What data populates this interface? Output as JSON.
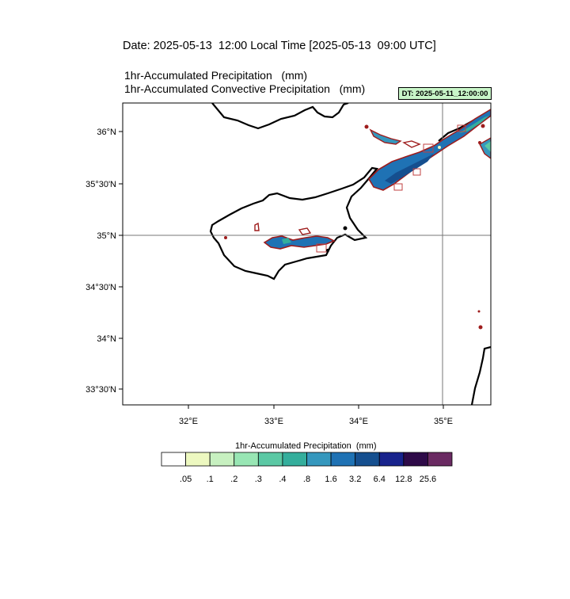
{
  "header": {
    "date_line": "Date: 2025-05-13  12:00 Local Time [2025-05-13  09:00 UTC]",
    "title_1": "1hr-Accumulated Precipitation   (mm)",
    "title_2": "1hr-Accumulated Convective Precipitation   (mm)",
    "dt_badge": "DT: 2025-05-11_12:00:00",
    "dt_badge_color": "#c8f5c8"
  },
  "map": {
    "lat_labels": [
      "36°N",
      "35°30'N",
      "35°N",
      "34°30'N",
      "34°N",
      "33°30'N"
    ],
    "lon_labels": [
      "32°E",
      "33°E",
      "34°E",
      "35°E"
    ],
    "lon_range": [
      31.25,
      35.55
    ],
    "lat_range": [
      33.35,
      36.25
    ],
    "reference_lines": {
      "lat": 35.0,
      "lon": 35.0
    }
  },
  "colorbar": {
    "title": "1hr-Accumulated Precipitation  (mm)",
    "levels": [
      ".05",
      ".1",
      ".2",
      ".3",
      ".4",
      ".8",
      "1.6",
      "3.2",
      "6.4",
      "12.8",
      "25.6"
    ],
    "colors": [
      "#ffffff",
      "#edf8c0",
      "#c7f0c0",
      "#98e6b4",
      "#5bc8a4",
      "#34ae9c",
      "#3597bd",
      "#1f72b4",
      "#154f8f",
      "#18238c",
      "#2e0a48",
      "#6a2a62"
    ]
  }
}
